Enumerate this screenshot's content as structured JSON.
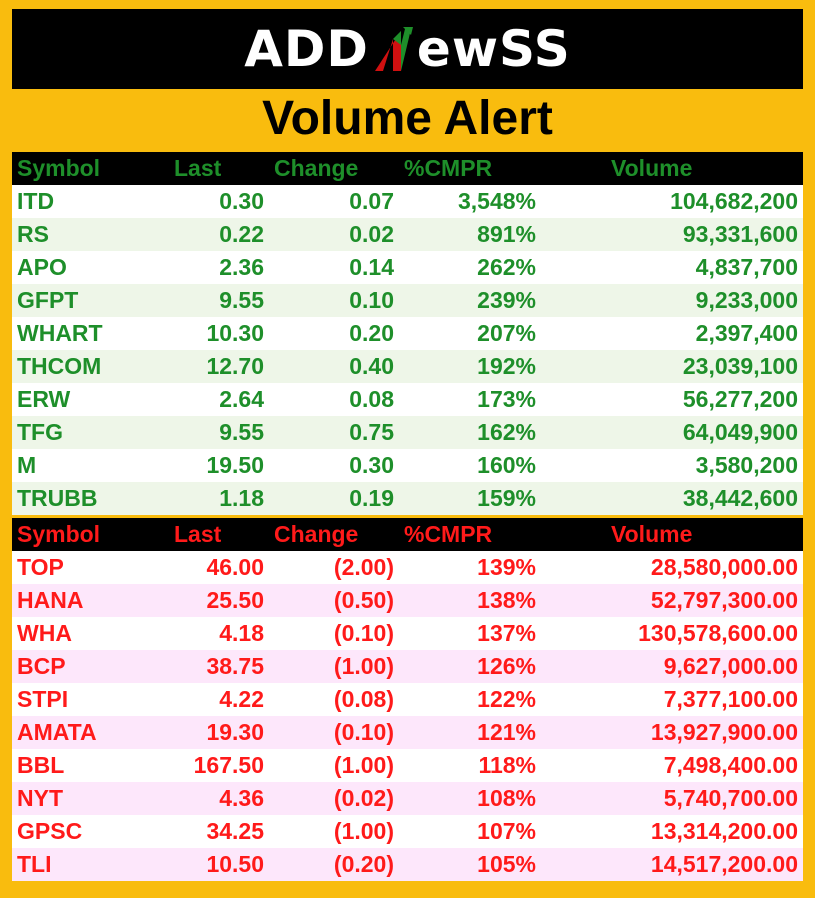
{
  "brand": {
    "prefix": "ADD",
    "suffix": "ewSS",
    "accent_green": "#1e8f2a",
    "accent_red": "#d01010"
  },
  "title": "Volume Alert",
  "headers": {
    "symbol": "Symbol",
    "last": "Last",
    "change": "Change",
    "cmpr": "%CMPR",
    "volume": "Volume"
  },
  "gainers": [
    {
      "symbol": "ITD",
      "last": "0.30",
      "change": "0.07",
      "cmpr": "3,548%",
      "volume": "104,682,200"
    },
    {
      "symbol": "RS",
      "last": "0.22",
      "change": "0.02",
      "cmpr": "891%",
      "volume": "93,331,600"
    },
    {
      "symbol": "APO",
      "last": "2.36",
      "change": "0.14",
      "cmpr": "262%",
      "volume": "4,837,700"
    },
    {
      "symbol": "GFPT",
      "last": "9.55",
      "change": "0.10",
      "cmpr": "239%",
      "volume": "9,233,000"
    },
    {
      "symbol": "WHART",
      "last": "10.30",
      "change": "0.20",
      "cmpr": "207%",
      "volume": "2,397,400"
    },
    {
      "symbol": "THCOM",
      "last": "12.70",
      "change": "0.40",
      "cmpr": "192%",
      "volume": "23,039,100"
    },
    {
      "symbol": "ERW",
      "last": "2.64",
      "change": "0.08",
      "cmpr": "173%",
      "volume": "56,277,200"
    },
    {
      "symbol": "TFG",
      "last": "9.55",
      "change": "0.75",
      "cmpr": "162%",
      "volume": "64,049,900"
    },
    {
      "symbol": "M",
      "last": "19.50",
      "change": "0.30",
      "cmpr": "160%",
      "volume": "3,580,200"
    },
    {
      "symbol": "TRUBB",
      "last": "1.18",
      "change": "0.19",
      "cmpr": "159%",
      "volume": "38,442,600"
    }
  ],
  "losers": [
    {
      "symbol": "TOP",
      "last": "46.00",
      "change": "(2.00)",
      "cmpr": "139%",
      "volume": "28,580,000.00"
    },
    {
      "symbol": "HANA",
      "last": "25.50",
      "change": "(0.50)",
      "cmpr": "138%",
      "volume": "52,797,300.00"
    },
    {
      "symbol": "WHA",
      "last": "4.18",
      "change": "(0.10)",
      "cmpr": "137%",
      "volume": "130,578,600.00"
    },
    {
      "symbol": "BCP",
      "last": "38.75",
      "change": "(1.00)",
      "cmpr": "126%",
      "volume": "9,627,000.00"
    },
    {
      "symbol": "STPI",
      "last": "4.22",
      "change": "(0.08)",
      "cmpr": "122%",
      "volume": "7,377,100.00"
    },
    {
      "symbol": "AMATA",
      "last": "19.30",
      "change": "(0.10)",
      "cmpr": "121%",
      "volume": "13,927,900.00"
    },
    {
      "symbol": "BBL",
      "last": "167.50",
      "change": "(1.00)",
      "cmpr": "118%",
      "volume": "7,498,400.00"
    },
    {
      "symbol": "NYT",
      "last": "4.36",
      "change": "(0.02)",
      "cmpr": "108%",
      "volume": "5,740,700.00"
    },
    {
      "symbol": "GPSC",
      "last": "34.25",
      "change": "(1.00)",
      "cmpr": "107%",
      "volume": "13,314,200.00"
    },
    {
      "symbol": "TLI",
      "last": "10.50",
      "change": "(0.20)",
      "cmpr": "105%",
      "volume": "14,517,200.00"
    }
  ]
}
